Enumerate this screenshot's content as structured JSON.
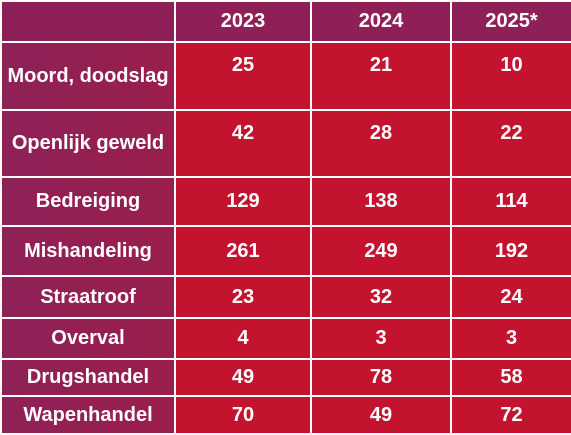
{
  "table": {
    "headers": [
      "",
      "2023",
      "2024",
      "2025*"
    ],
    "rows": [
      {
        "label": "Moord, doodslag",
        "values": [
          "25",
          "21",
          "10"
        ]
      },
      {
        "label": "Openlijk geweld",
        "values": [
          "42",
          "28",
          "22"
        ]
      },
      {
        "label": "Bedreiging",
        "values": [
          "129",
          "138",
          "114"
        ]
      },
      {
        "label": "Mishandeling",
        "values": [
          "261",
          "249",
          "192"
        ]
      },
      {
        "label": "Straatroof",
        "values": [
          "23",
          "32",
          "24"
        ]
      },
      {
        "label": "Overval",
        "values": [
          "4",
          "3",
          "3"
        ]
      },
      {
        "label": "Drugshandel",
        "values": [
          "49",
          "78",
          "58"
        ]
      },
      {
        "label": "Wapenhandel",
        "values": [
          "70",
          "49",
          "72"
        ]
      }
    ]
  },
  "colors": {
    "header_bg": "#8f1f57",
    "label_bg": "#922052",
    "cell_bg": "#c4132f",
    "text": "#ffffff"
  }
}
